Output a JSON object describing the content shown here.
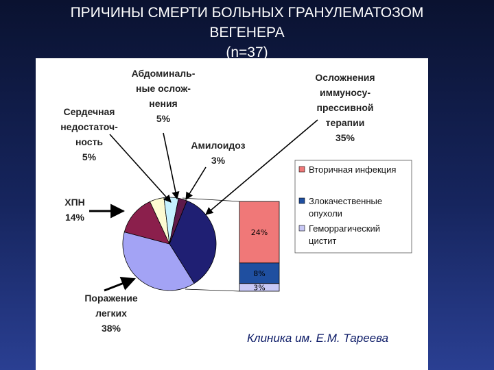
{
  "title": {
    "line1": "ПРИЧИНЫ СМЕРТИ БОЛЬНЫХ ГРАНУЛЕМАТОЗОМ",
    "line2": "ВЕГЕНЕРА",
    "line3": "(n=37)"
  },
  "credit": "Клиника им. Е.М. Тареева",
  "colors": {
    "lung": "#a3a3f5",
    "kidney": "#8b1f4c",
    "heart": "#fdfbd2",
    "abdominal": "#c6f2ff",
    "amyloid": "#5e1a4a",
    "immuno": "#1f1f73",
    "infection": "#f07878",
    "tumors": "#1f4fa0",
    "cystitis": "#c8c8f5"
  },
  "chart_data": [
    {
      "type": "pie",
      "slices": [
        {
          "key": "immuno",
          "label_lines": [
            "Осложнения",
            "иммуносу-",
            "прессивной",
            "терапии",
            "35%"
          ],
          "value": 35
        },
        {
          "key": "lung",
          "label_lines": [
            "Поражение",
            "легких",
            "38%"
          ],
          "value": 38
        },
        {
          "key": "kidney",
          "label_lines": [
            "ХПН",
            "14%"
          ],
          "value": 14
        },
        {
          "key": "heart",
          "label_lines": [
            "Сердечная",
            "недостаточ-",
            "ность",
            "5%"
          ],
          "value": 5
        },
        {
          "key": "abdominal",
          "label_lines": [
            "Абдоминаль-",
            "ные ослож-",
            "нения",
            "5%"
          ],
          "value": 5
        },
        {
          "key": "amyloid",
          "label_lines": [
            "Амилоидоз",
            "3%"
          ],
          "value": 3
        }
      ]
    },
    {
      "type": "bar",
      "stacked": true,
      "segments": [
        {
          "key": "infection",
          "name": "Вторичная инфекция",
          "value": 24,
          "label": "24%"
        },
        {
          "key": "tumors",
          "name": "Злокачественные опухоли",
          "value": 8,
          "label": "8%"
        },
        {
          "key": "cystitis",
          "name": "Геморрагический цистит",
          "value": 3,
          "label": "3%"
        }
      ],
      "legend": [
        {
          "key": "infection",
          "lines": [
            "Вторичная инфекция"
          ]
        },
        {
          "key": "tumors",
          "lines": [
            "Злокачественные",
            "опухоли"
          ]
        },
        {
          "key": "cystitis",
          "lines": [
            "Геморрагический",
            "цистит"
          ]
        }
      ]
    }
  ]
}
